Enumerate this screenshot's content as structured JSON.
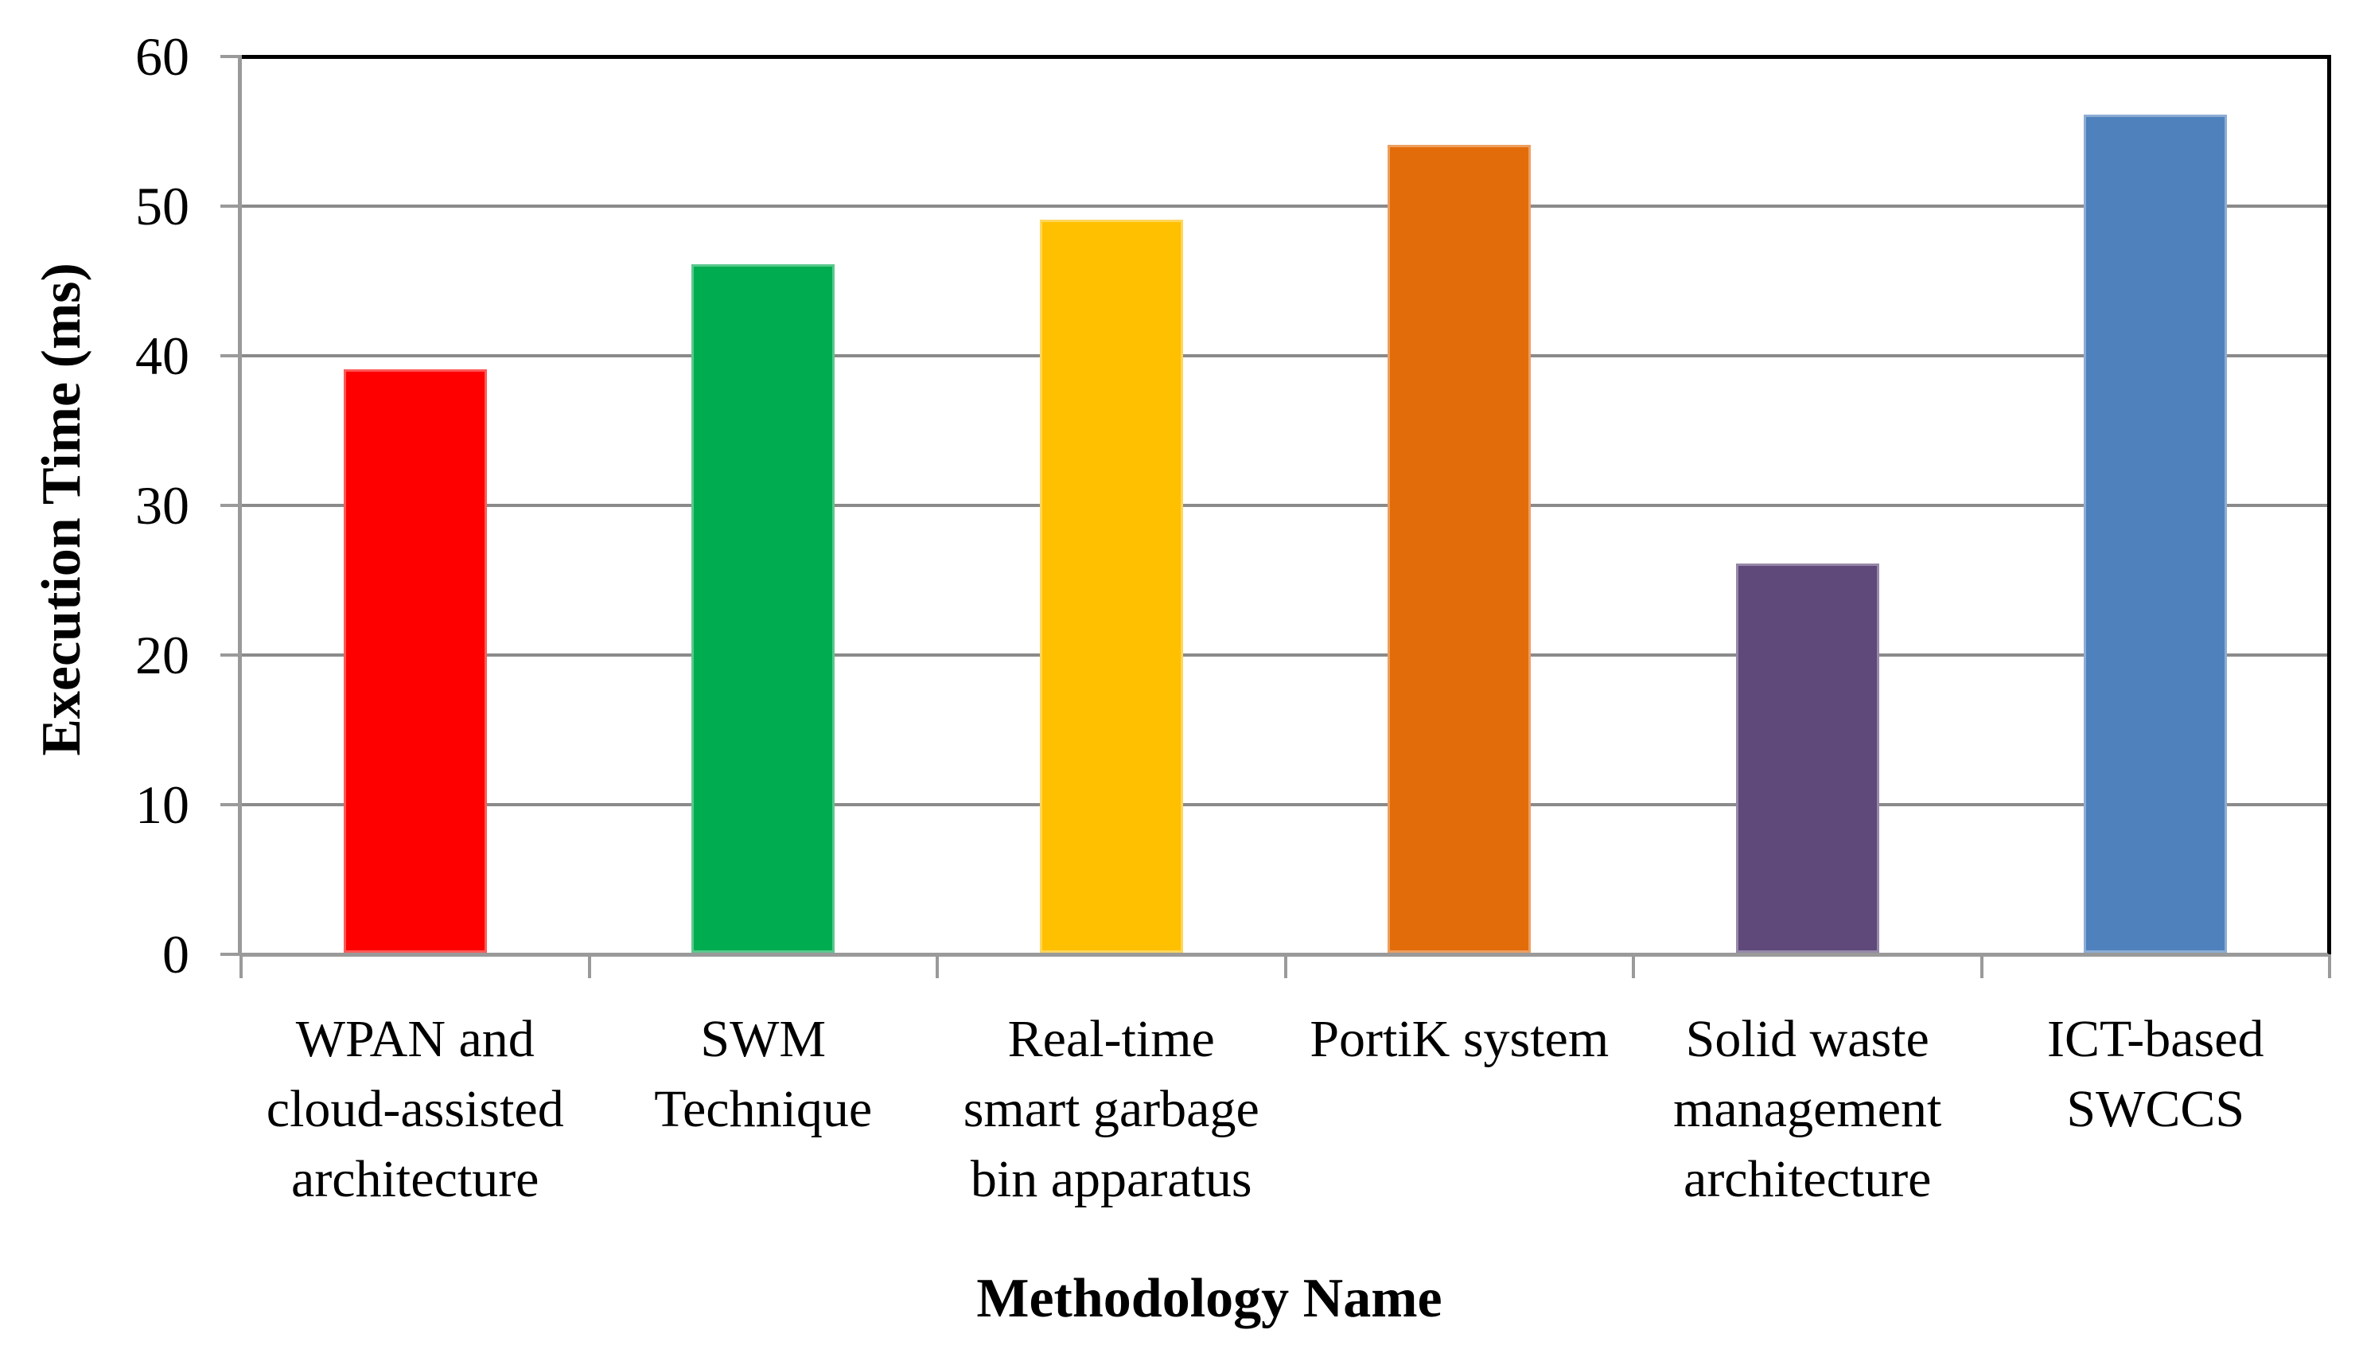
{
  "chart_data": {
    "type": "bar",
    "title": "",
    "xlabel": "Methodology Name",
    "ylabel": "Execution Time (ms)",
    "categories": [
      "WPAN and\ncloud-assisted\narchitecture",
      "SWM\nTechnique",
      "Real-time\nsmart garbage\nbin apparatus",
      "PortiK system",
      "Solid waste\nmanagement\narchitecture",
      "ICT-based\nSWCCS"
    ],
    "values": [
      39,
      46,
      49,
      54,
      26,
      56
    ],
    "ylim": [
      0,
      60
    ],
    "yticks": [
      0,
      10,
      20,
      30,
      40,
      50,
      60
    ],
    "grid": "horizontal",
    "legend": "none",
    "style": {
      "bar_colors": [
        "#FF0000",
        "#00AC50",
        "#FFC000",
        "#E36C0A",
        "#5F497A",
        "#4F81BD"
      ],
      "gridline_color": "#8A8A8A",
      "axis_color": "#9A9A9A",
      "plot_border_color": "#000000",
      "text_color": "#000000",
      "background": "#FFFFFF"
    }
  }
}
